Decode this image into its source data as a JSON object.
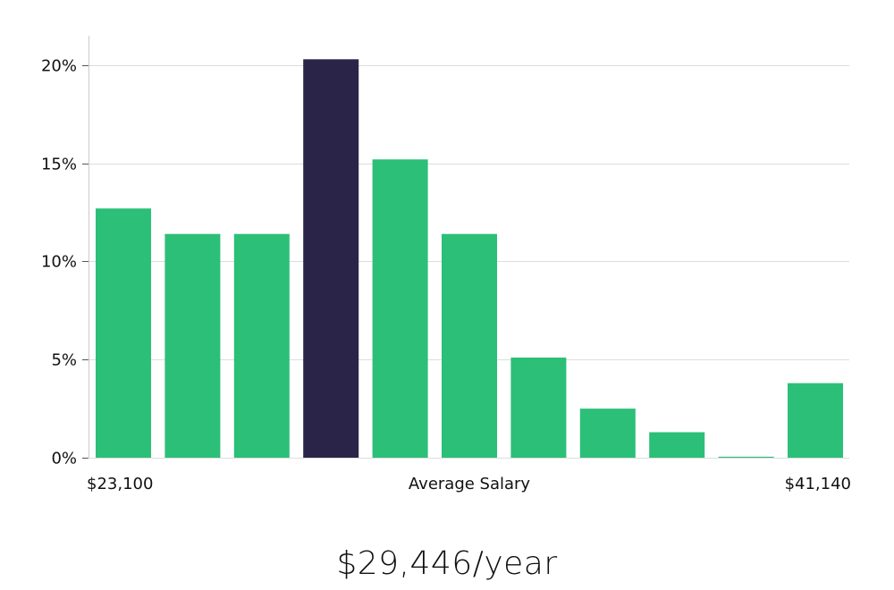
{
  "chart_data": {
    "type": "bar",
    "categories": [
      "1",
      "2",
      "3",
      "4",
      "5",
      "6",
      "7",
      "8",
      "9",
      "10",
      "11"
    ],
    "values": [
      12.7,
      11.4,
      11.4,
      20.3,
      15.2,
      11.4,
      5.1,
      2.5,
      1.3,
      0.05,
      3.8
    ],
    "highlight_index": 3,
    "colors": {
      "bar": "#2bbf78",
      "highlight": "#2a2548",
      "grid": "#dddddd",
      "axis": "#cccccc"
    },
    "ylim": [
      0,
      21.5
    ],
    "yticks": [
      0,
      5,
      10,
      15,
      20
    ],
    "ytick_labels": [
      "0%",
      "5%",
      "10%",
      "15%",
      "20%"
    ],
    "x_min_label": "$23,100",
    "x_center_label": "Average Salary",
    "x_max_label": "$41,140",
    "grid": true
  },
  "summary": {
    "average_salary": "$29,446/year"
  }
}
